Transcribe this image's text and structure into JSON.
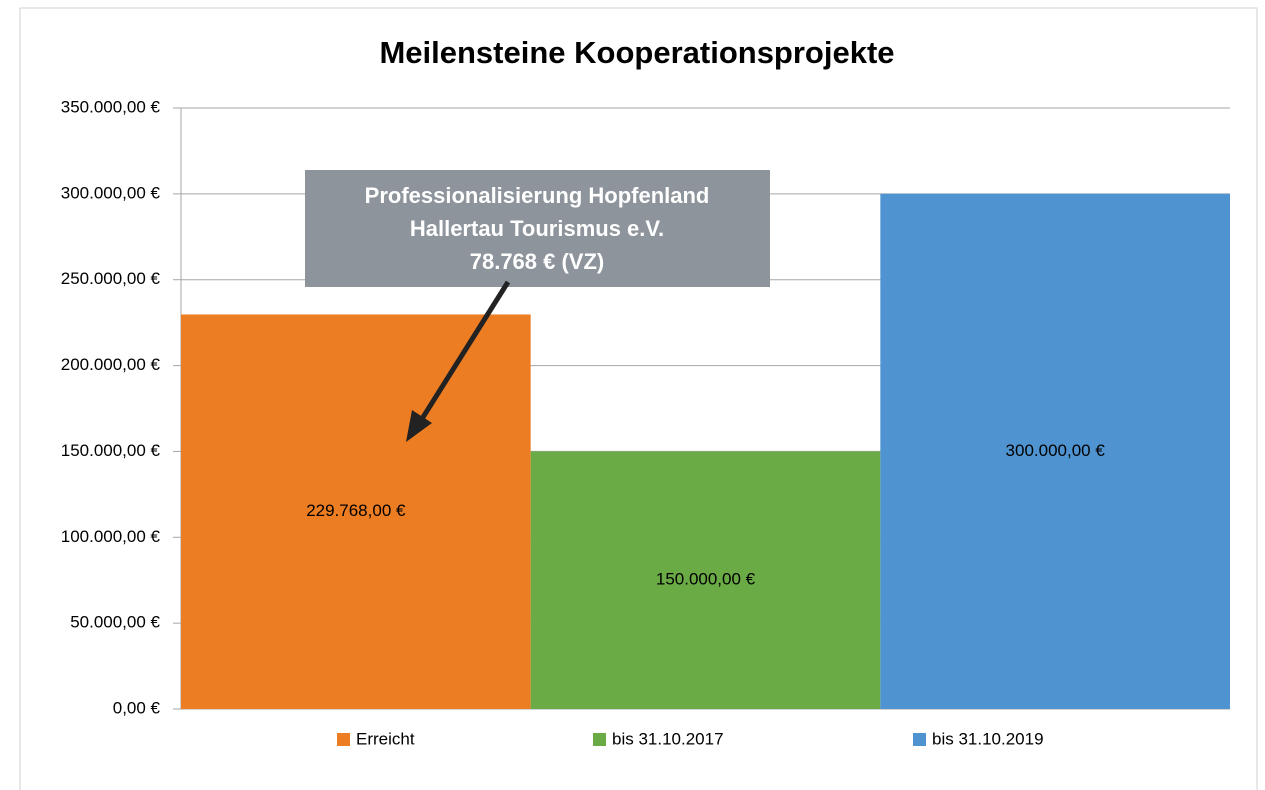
{
  "chart_data": {
    "type": "bar",
    "title": "Meilensteine Kooperationsprojekte",
    "categories": [
      null
    ],
    "series": [
      {
        "name": "Erreicht",
        "color": "#ed7d22",
        "values": [
          229768
        ],
        "value_labels": [
          "229.768,00 €"
        ]
      },
      {
        "name": "bis 31.10.2017",
        "color": "#6aab45",
        "values": [
          150000
        ],
        "value_labels": [
          "150.000,00 €"
        ]
      },
      {
        "name": "bis 31.10.2019",
        "color": "#4f94d0",
        "values": [
          300000
        ],
        "value_labels": [
          "300.000,00 €"
        ]
      }
    ],
    "ylim": [
      0,
      350000
    ],
    "yticks": [
      {
        "value": 0,
        "label": "0,00 €"
      },
      {
        "value": 50000,
        "label": "50.000,00 €"
      },
      {
        "value": 100000,
        "label": "100.000,00 €"
      },
      {
        "value": 150000,
        "label": "150.000,00 €"
      },
      {
        "value": 200000,
        "label": "200.000,00 €"
      },
      {
        "value": 250000,
        "label": "250.000,00 €"
      },
      {
        "value": 300000,
        "label": "300.000,00 €"
      },
      {
        "value": 350000,
        "label": "350.000,00 €"
      }
    ],
    "grid": true,
    "legend": "bottom",
    "annotation": {
      "lines": [
        "Professionalisierung Hopfenland",
        "Hallertau Tourismus e.V.",
        "78.768 € (VZ)"
      ]
    }
  }
}
